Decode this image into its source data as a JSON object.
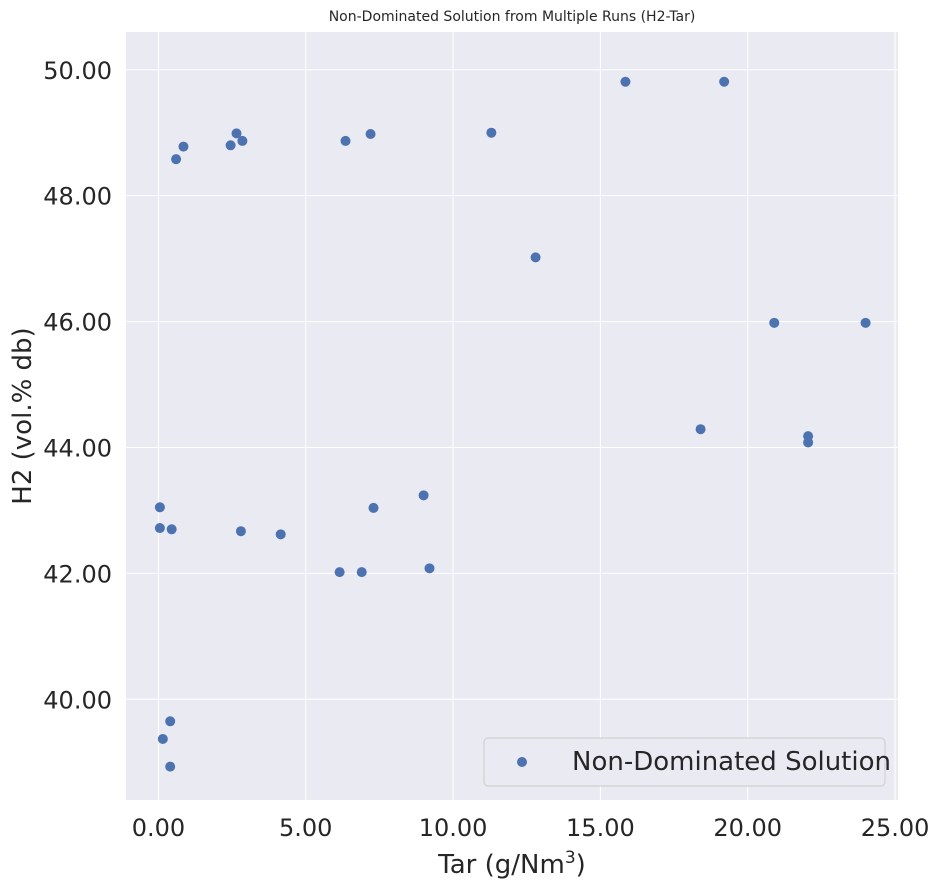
{
  "chart_data": {
    "type": "scatter",
    "title": "Non-Dominated Solution from Multiple Runs (H2-Tar)",
    "xlabel": "Tar (g/Nm",
    "xlabel_sup": "3",
    "xlabel_end": ")",
    "ylabel": "H2 (vol.% db)",
    "xlim": [
      -1.1,
      25.1
    ],
    "ylim": [
      38.4,
      50.6
    ],
    "xticks": [
      "0.00",
      "5.00",
      "10.00",
      "15.00",
      "20.00",
      "25.00"
    ],
    "xtick_values": [
      0,
      5,
      10,
      15,
      20,
      25
    ],
    "yticks": [
      "40.00",
      "42.00",
      "44.00",
      "46.00",
      "48.00",
      "50.00"
    ],
    "ytick_values": [
      40,
      42,
      44,
      46,
      48,
      50
    ],
    "grid": true,
    "legend_position": "bottom-right",
    "series": [
      {
        "name": "Non-Dominated Solution",
        "color": "#4c72b0",
        "points": [
          {
            "x": 0.6,
            "y": 48.58
          },
          {
            "x": 0.85,
            "y": 48.78
          },
          {
            "x": 2.45,
            "y": 48.8
          },
          {
            "x": 2.65,
            "y": 48.99
          },
          {
            "x": 2.85,
            "y": 48.87
          },
          {
            "x": 6.35,
            "y": 48.87
          },
          {
            "x": 7.2,
            "y": 48.98
          },
          {
            "x": 11.3,
            "y": 49.0
          },
          {
            "x": 12.8,
            "y": 47.02
          },
          {
            "x": 15.85,
            "y": 49.81
          },
          {
            "x": 19.2,
            "y": 49.81
          },
          {
            "x": 20.9,
            "y": 45.98
          },
          {
            "x": 24.0,
            "y": 45.98
          },
          {
            "x": 18.4,
            "y": 44.29
          },
          {
            "x": 22.05,
            "y": 44.18
          },
          {
            "x": 22.05,
            "y": 44.08
          },
          {
            "x": 0.05,
            "y": 43.05
          },
          {
            "x": 0.05,
            "y": 42.72
          },
          {
            "x": 0.45,
            "y": 42.7
          },
          {
            "x": 2.8,
            "y": 42.67
          },
          {
            "x": 4.15,
            "y": 42.62
          },
          {
            "x": 7.3,
            "y": 43.04
          },
          {
            "x": 9.0,
            "y": 43.24
          },
          {
            "x": 6.15,
            "y": 42.02
          },
          {
            "x": 6.9,
            "y": 42.02
          },
          {
            "x": 9.2,
            "y": 42.08
          },
          {
            "x": 0.4,
            "y": 39.65
          },
          {
            "x": 0.15,
            "y": 39.37
          },
          {
            "x": 0.4,
            "y": 38.93
          }
        ]
      }
    ]
  }
}
